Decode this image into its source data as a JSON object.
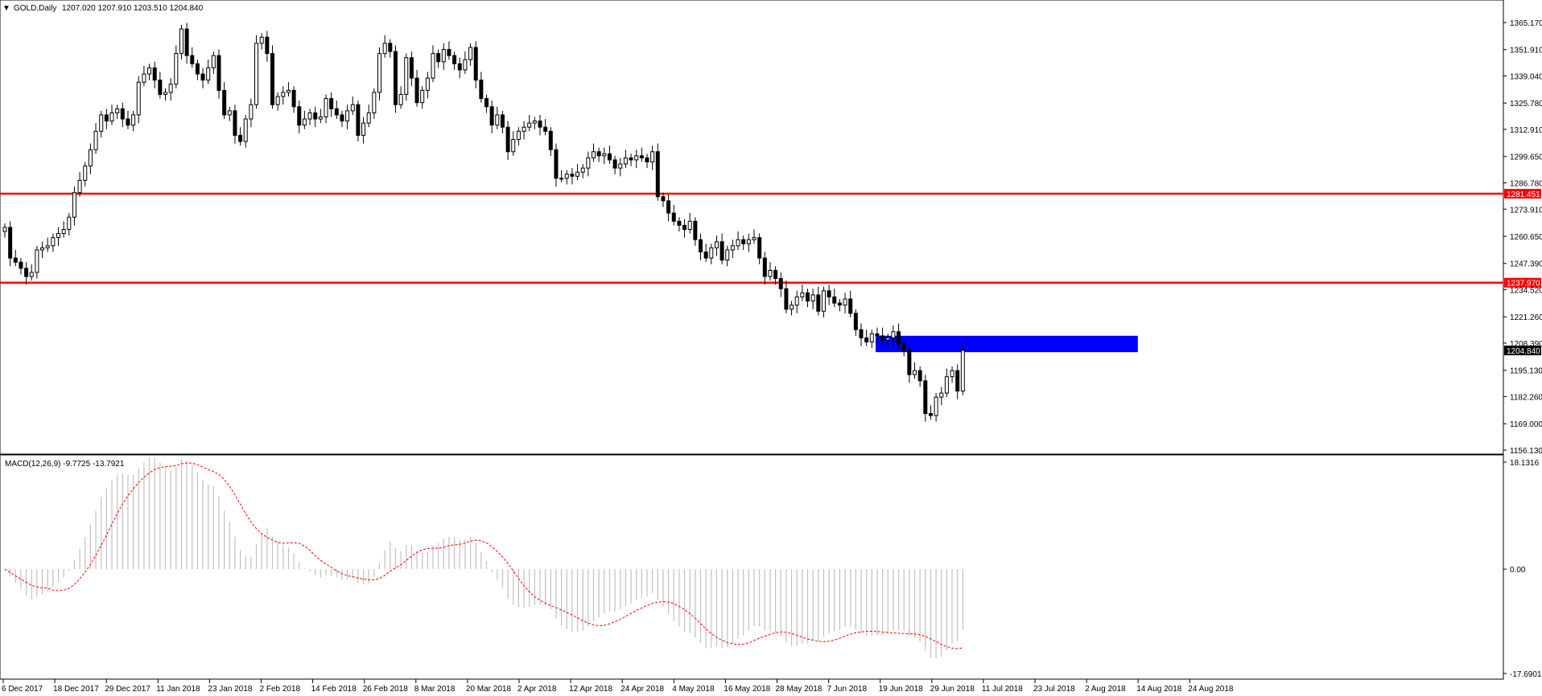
{
  "chart_data": [
    {
      "type": "candlestick",
      "symbol_label": "GOLD,Daily",
      "ohlc_label": "1207.020 1207.910 1203.510 1204.840",
      "ylim": [
        1156.13,
        1372.0
      ],
      "y_tick_labels": [
        "1365.170",
        "1351.910",
        "1339.040",
        "1325.780",
        "1312.910",
        "1299.650",
        "1286.780",
        "1273.910",
        "1260.650",
        "1247.390",
        "1234.520",
        "1221.260",
        "1208.390",
        "1195.130",
        "1182.260",
        "1169.000",
        "1156.130"
      ],
      "y_tick_values": [
        1365.17,
        1351.91,
        1339.04,
        1325.78,
        1312.91,
        1299.65,
        1286.78,
        1273.91,
        1260.65,
        1247.39,
        1234.52,
        1221.26,
        1208.39,
        1195.13,
        1182.26,
        1169.0,
        1156.13
      ],
      "horizontal_levels": [
        {
          "value": 1281.451,
          "label": "1281.451",
          "color": "#ff0000"
        },
        {
          "value": 1237.97,
          "label": "1237.970",
          "color": "#ff0000"
        }
      ],
      "current_price": {
        "value": 1204.84,
        "label": "1204.840"
      },
      "zone": {
        "from_bar": 163,
        "to_bar": 212,
        "low": 1204.0,
        "high": 1212.0,
        "color": "#0000ff"
      },
      "closes": [
        1265,
        1250,
        1248,
        1245,
        1241,
        1243,
        1254,
        1255,
        1256,
        1260,
        1262,
        1264,
        1270,
        1282,
        1288,
        1295,
        1303,
        1312,
        1320,
        1317,
        1321,
        1323,
        1318,
        1315,
        1320,
        1336,
        1340,
        1343,
        1337,
        1330,
        1331,
        1335,
        1350,
        1362,
        1349,
        1345,
        1340,
        1337,
        1343,
        1349,
        1332,
        1320,
        1322,
        1310,
        1307,
        1318,
        1325,
        1355,
        1358,
        1350,
        1325,
        1329,
        1331,
        1332,
        1324,
        1315,
        1318,
        1321,
        1318,
        1319,
        1328,
        1323,
        1320,
        1317,
        1322,
        1325,
        1310,
        1316,
        1321,
        1331,
        1350,
        1355,
        1351,
        1325,
        1330,
        1348,
        1338,
        1326,
        1332,
        1338,
        1350,
        1346,
        1352,
        1349,
        1345,
        1342,
        1347,
        1353,
        1337,
        1328,
        1324,
        1315,
        1320,
        1314,
        1302,
        1308,
        1312,
        1314,
        1316,
        1317,
        1314,
        1312,
        1303,
        1289,
        1289,
        1291,
        1290,
        1292,
        1294,
        1299,
        1302,
        1300,
        1301,
        1298,
        1294,
        1296,
        1299,
        1298,
        1300,
        1299,
        1297,
        1302,
        1280,
        1278,
        1272,
        1268,
        1266,
        1264,
        1268,
        1259,
        1253,
        1250,
        1255,
        1258,
        1249,
        1254,
        1256,
        1259,
        1257,
        1259,
        1260,
        1250,
        1241,
        1244,
        1240,
        1235,
        1225,
        1227,
        1231,
        1233,
        1229,
        1232,
        1224,
        1234,
        1231,
        1228,
        1227,
        1230,
        1223,
        1215,
        1211,
        1209,
        1213,
        1212,
        1210,
        1211,
        1214,
        1208,
        1205,
        1193,
        1195,
        1190,
        1174,
        1173,
        1182,
        1184,
        1192,
        1195,
        1185,
        1204.84
      ],
      "labels_x": [
        "6 Dec 2017",
        "18 Dec 2017",
        "29 Dec 2017",
        "11 Jan 2018",
        "23 Jan 2018",
        "2 Feb 2018",
        "14 Feb 2018",
        "26 Feb 2018",
        "8 Mar 2018",
        "20 Mar 2018",
        "2 Apr 2018",
        "12 Apr 2018",
        "24 Apr 2018",
        "4 May 2018",
        "16 May 2018",
        "28 May 2018",
        "7 Jun 2018",
        "19 Jun 2018",
        "29 Jun 2018",
        "11 Jul 2018",
        "23 Jul 2018",
        "2 Aug 2018",
        "14 Aug 2018",
        "24 Aug 2018"
      ]
    },
    {
      "type": "macd",
      "indicator_label": "MACD(12,26,9) -9.7725 -13.7921",
      "ylim": [
        -17.6901,
        18.1316
      ],
      "y_tick_labels": [
        "18.1316",
        "0.00",
        "-17.6901"
      ],
      "y_tick_values": [
        18.1316,
        0.0,
        -17.6901
      ],
      "histogram_color": "#c0c0c0",
      "signal_color": "#ff0000"
    }
  ]
}
